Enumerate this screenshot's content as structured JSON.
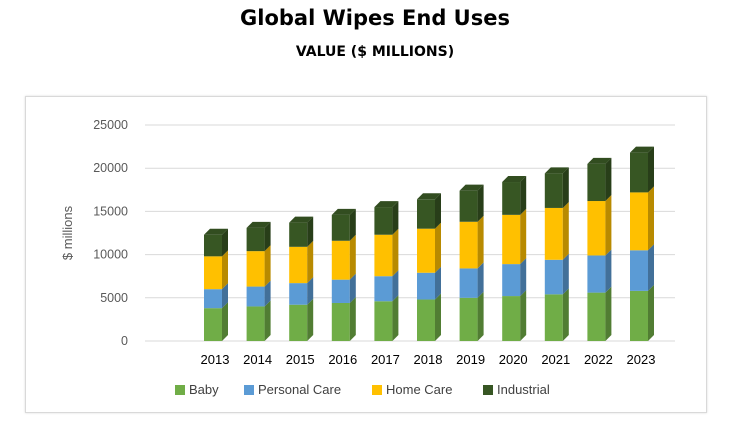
{
  "title": "Global Wipes End Uses",
  "subtitle": "VALUE ($ MILLIONS)",
  "chart_data": {
    "type": "bar",
    "stacked": true,
    "ylabel": "$ millions",
    "xlabel": "",
    "ylim": [
      0,
      25000
    ],
    "yticks": [
      0,
      5000,
      10000,
      15000,
      20000,
      25000
    ],
    "grid": true,
    "legend_position": "bottom",
    "categories": [
      "2013",
      "2014",
      "2015",
      "2016",
      "2017",
      "2018",
      "2019",
      "2020",
      "2021",
      "2022",
      "2023"
    ],
    "series": [
      {
        "name": "Baby",
        "color": "#70ad47",
        "values": [
          3800,
          4000,
          4200,
          4400,
          4600,
          4800,
          5000,
          5200,
          5400,
          5600,
          5800
        ]
      },
      {
        "name": "Personal Care",
        "color": "#5b9bd5",
        "values": [
          2200,
          2300,
          2500,
          2700,
          2900,
          3100,
          3400,
          3700,
          4000,
          4300,
          4700
        ]
      },
      {
        "name": "Home Care",
        "color": "#ffc000",
        "values": [
          3800,
          4100,
          4200,
          4500,
          4800,
          5100,
          5400,
          5700,
          6000,
          6300,
          6700
        ]
      },
      {
        "name": "Industrial",
        "color": "#375623",
        "values": [
          2500,
          2700,
          2800,
          3000,
          3200,
          3400,
          3600,
          3800,
          4000,
          4300,
          4600
        ]
      }
    ]
  }
}
